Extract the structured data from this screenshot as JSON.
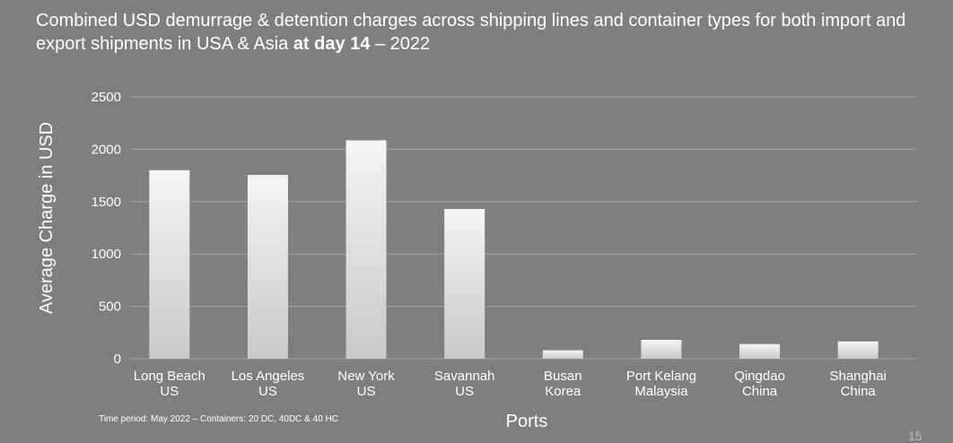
{
  "title": {
    "prefix": "Combined USD demurrage & detention charges across shipping lines and container types for both import and export shipments in USA & Asia",
    "emphasis": "at day 14",
    "suffix": "– 2022"
  },
  "footnote": "Time period: May 2022 – Containers: 20 DC, 40DC & 40 HC",
  "page_number": "15",
  "colors": {
    "background": "#7f7f7f",
    "bar_top": "#f5f5f5",
    "bar_bottom": "#c9c9c9",
    "grid": "#a6a6a6",
    "text": "#ffffff"
  },
  "chart_data": {
    "type": "bar",
    "title": "Combined USD demurrage & detention charges across shipping lines and container types for both import and export shipments in USA & Asia at day 14 – 2022",
    "xlabel": "Ports",
    "ylabel": "Average  Charge in USD",
    "ylim": [
      0,
      2500
    ],
    "yticks": [
      0,
      500,
      1000,
      1500,
      2000,
      2500
    ],
    "grid": true,
    "categories": [
      [
        "Long Beach",
        "US"
      ],
      [
        "Los Angeles",
        "US"
      ],
      [
        "New York",
        "US"
      ],
      [
        "Savannah",
        "US"
      ],
      [
        "Busan",
        "Korea"
      ],
      [
        "Port Kelang",
        "Malaysia"
      ],
      [
        "Qingdao",
        "China"
      ],
      [
        "Shanghai",
        "China"
      ]
    ],
    "values": [
      1800,
      1755,
      2085,
      1430,
      80,
      180,
      140,
      165
    ]
  }
}
